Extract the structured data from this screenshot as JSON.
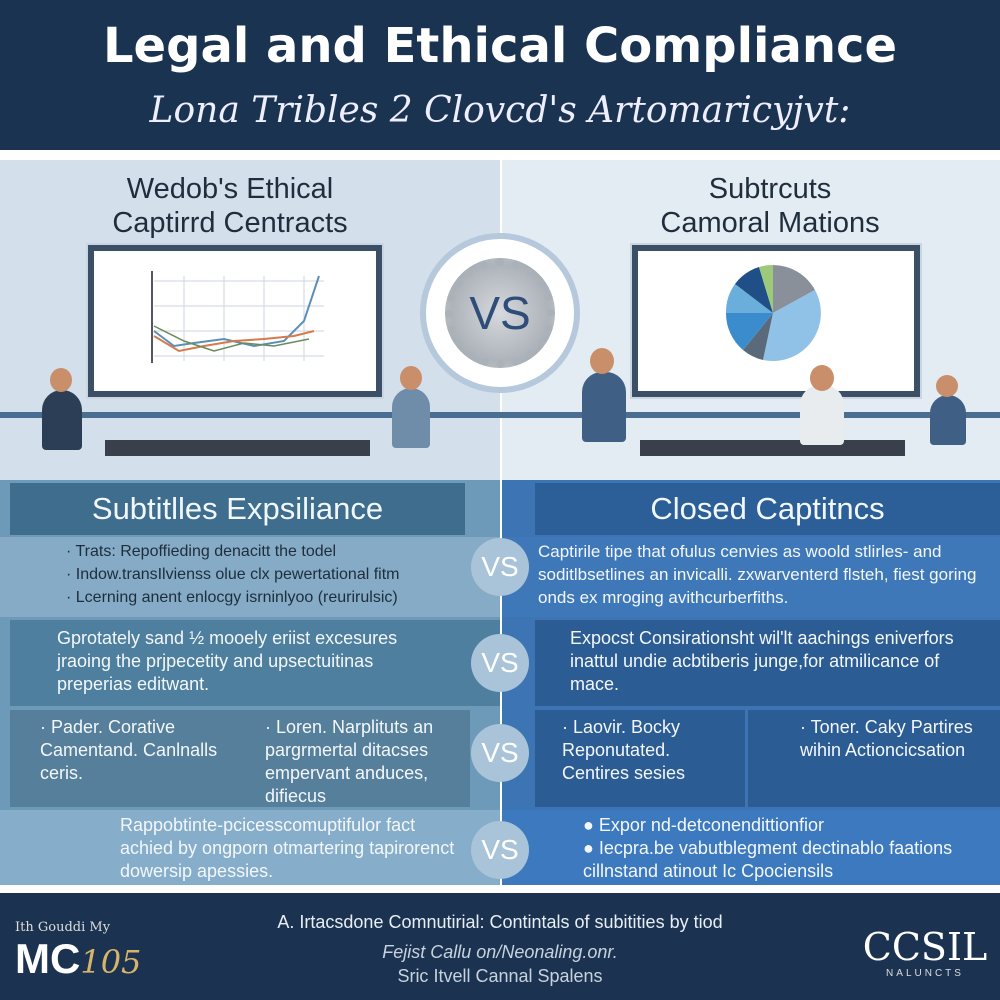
{
  "header": {
    "title": "Legal and Ethical Compliance",
    "subtitle": "Lona Tribles 2 Clovcd's Artomaricyjvt:"
  },
  "left_panel": {
    "heading_line1": "Wedob's Ethical",
    "heading_line2": "Captirrd Centracts"
  },
  "right_panel": {
    "heading_line1": "Subtrcuts",
    "heading_line2": "Camoral Mations"
  },
  "vs_label": "VS",
  "columns": {
    "left_title": "Subtitlles Expsiliance",
    "right_title": "Closed Captitncs"
  },
  "rows": [
    {
      "left": [
        "Trats: Repoffieding denacitt the todel",
        "Indow.transIlvienss olue clx pewertational fitm",
        "Lcerning anent enlocgy isrninlyoo (reurirulsic)"
      ],
      "right": "Captirile tipe that ofulus cenvies as woold stlirles- and soditlbsetlines an invicalli. zxwarventerd flsteh, fiest goring onds ex mroging avithcurberfiths."
    },
    {
      "left": "Gprotately sand ½ mooely eriist excesures jraoing the prjpecetity and upsectuitinas preperias editwant.",
      "right": "Expocst Consirationsht wil'lt aachings eniverfors inattul undie acbtiberis junge,for atmilicance of mace."
    },
    {
      "left_a": "Pader. Corative Camentand. Canlnalls ceris.",
      "left_b": "Loren. Narplituts an pargrmertal ditacses empervant anduces, difiecus",
      "right_a": "Laovir. Bocky Reponutated. Centires sesies",
      "right_b": "Toner. Caky Partires wihin Actioncicsation"
    },
    {
      "left": "Rappobtinte-pcicesscomuptifulor fact achied by ongporn otmartering tapirorenct dowersip apessies.",
      "right": [
        "Expor nd-detconendittionfior",
        "Iecpra.be vabutblegment dectinablo faations cillnstand atinout Ic Cpociensils"
      ]
    }
  ],
  "footer": {
    "logo_small": "Ith Gouddi My",
    "logo_big": "MC",
    "logo_num": "105",
    "line1": "A. Irtacsdone Comnutirial: Contintals of subitities by tiod",
    "line2": "Fejist Callu on/Neonaling.onr.",
    "line3": "Sric Itvell Cannal Spalens",
    "right_logo": "CCSIL",
    "right_logo_sub": "NALUNCTS"
  },
  "colors": {
    "navy": "#1a3350",
    "left_blue": "#6e9aba",
    "right_blue": "#3d74b3"
  }
}
